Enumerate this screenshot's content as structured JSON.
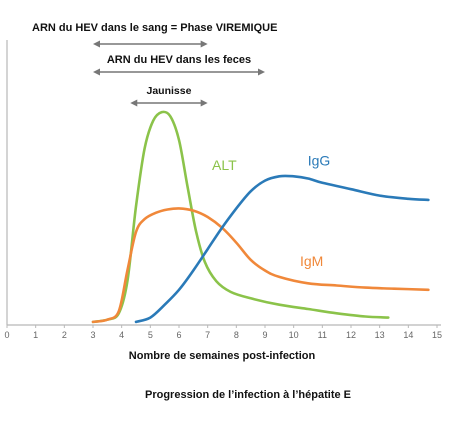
{
  "chart_data": {
    "type": "line",
    "xlabel": "Nombre de semaines post-infection",
    "ylabel": "",
    "caption": "Progression de l’infection à l’hépatite E",
    "xlim": [
      0,
      15
    ],
    "ylim": [
      0,
      100
    ],
    "x_ticks": [
      0,
      1,
      2,
      3,
      4,
      5,
      6,
      7,
      8,
      9,
      10,
      11,
      12,
      13,
      14,
      15
    ],
    "grid": false,
    "legend": "none",
    "periods": [
      {
        "label": "ARN du HEV dans le sang = Phase VIREMIQUE",
        "start": 3,
        "end": 7
      },
      {
        "label": "ARN du HEV dans les feces",
        "start": 3,
        "end": 9
      },
      {
        "label": "Jaunisse",
        "start": 4.3,
        "end": 7
      }
    ],
    "series": [
      {
        "name": "ALT",
        "color": "#8bc34a",
        "points": [
          [
            3,
            1
          ],
          [
            3.5,
            2
          ],
          [
            3.9,
            5
          ],
          [
            4.2,
            20
          ],
          [
            4.5,
            55
          ],
          [
            4.8,
            82
          ],
          [
            5.1,
            95
          ],
          [
            5.4,
            99
          ],
          [
            5.7,
            97
          ],
          [
            6.0,
            86
          ],
          [
            6.3,
            64
          ],
          [
            6.6,
            43
          ],
          [
            6.9,
            29
          ],
          [
            7.3,
            20
          ],
          [
            7.8,
            15
          ],
          [
            8.5,
            12
          ],
          [
            9.5,
            9
          ],
          [
            10.5,
            7
          ],
          [
            11.5,
            5
          ],
          [
            12.5,
            3.5
          ],
          [
            13.3,
            3
          ]
        ]
      },
      {
        "name": "IgM",
        "color": "#f0883a",
        "points": [
          [
            3,
            1
          ],
          [
            3.5,
            2
          ],
          [
            3.9,
            6
          ],
          [
            4.2,
            25
          ],
          [
            4.5,
            43
          ],
          [
            4.8,
            49
          ],
          [
            5.2,
            52
          ],
          [
            5.6,
            53.5
          ],
          [
            6.0,
            54
          ],
          [
            6.5,
            53
          ],
          [
            7.0,
            50
          ],
          [
            7.5,
            45
          ],
          [
            8.0,
            38
          ],
          [
            8.5,
            30
          ],
          [
            9.0,
            25
          ],
          [
            9.5,
            22
          ],
          [
            10.5,
            19
          ],
          [
            11.5,
            18
          ],
          [
            12.5,
            17
          ],
          [
            13.5,
            16.5
          ],
          [
            14.7,
            16
          ]
        ]
      },
      {
        "name": "IgG",
        "color": "#2a7ab8",
        "points": [
          [
            4.5,
            1
          ],
          [
            5.0,
            3
          ],
          [
            5.5,
            9
          ],
          [
            6.0,
            16
          ],
          [
            6.5,
            25
          ],
          [
            7.0,
            35
          ],
          [
            7.5,
            45
          ],
          [
            8.0,
            54
          ],
          [
            8.5,
            62
          ],
          [
            9.0,
            67
          ],
          [
            9.5,
            69
          ],
          [
            10.0,
            69
          ],
          [
            10.5,
            68
          ],
          [
            11.0,
            66
          ],
          [
            12.0,
            63
          ],
          [
            13.0,
            60
          ],
          [
            14.0,
            58.5
          ],
          [
            14.7,
            58
          ]
        ]
      }
    ]
  }
}
